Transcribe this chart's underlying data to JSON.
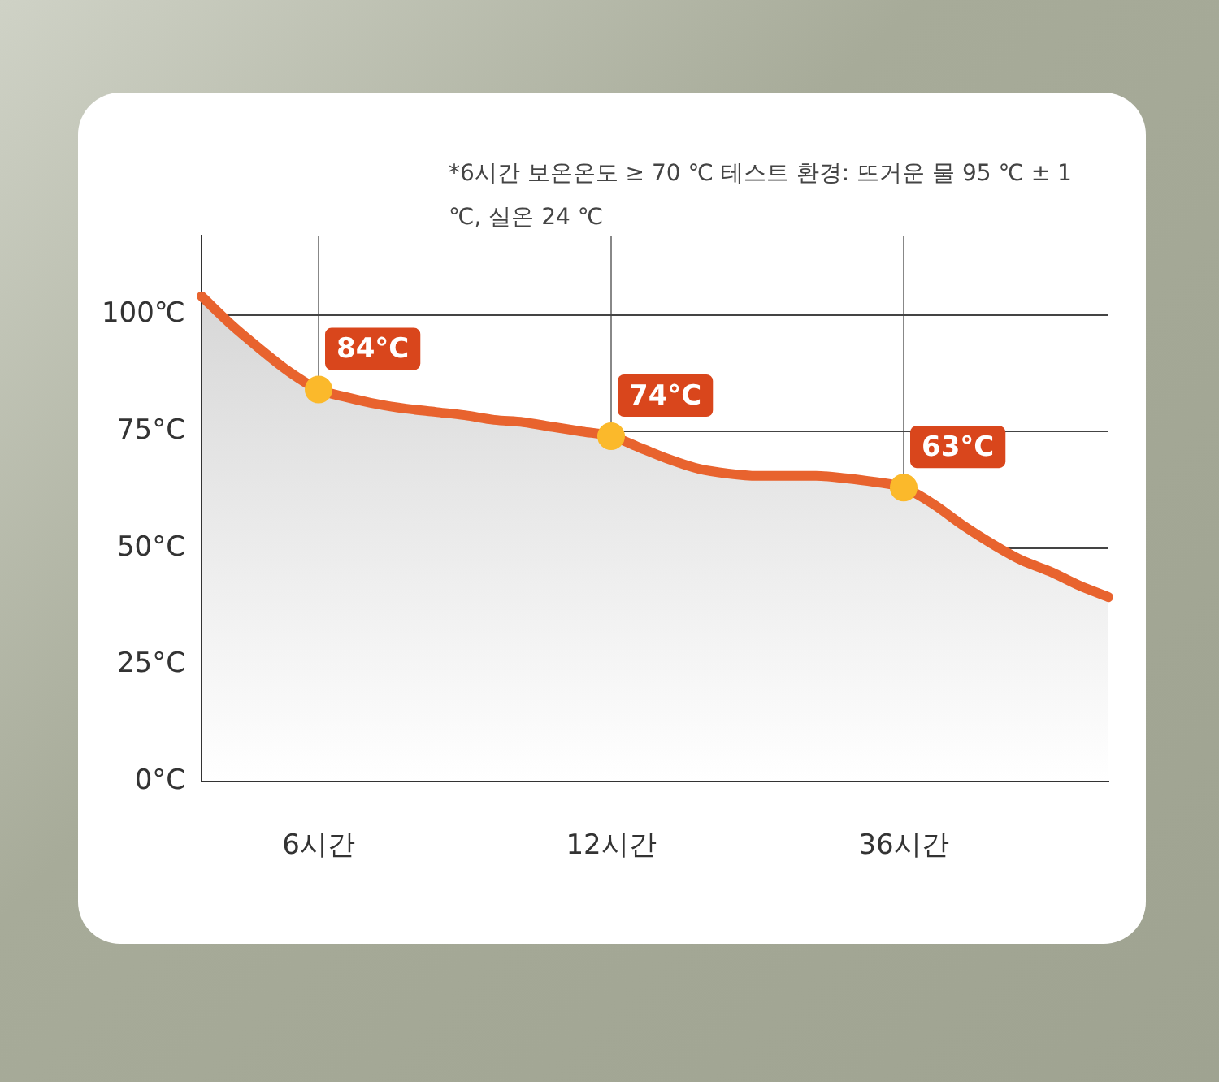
{
  "chart_data": {
    "type": "area",
    "annotations": [
      "*6시간 보온온도 ≥ 70 ℃ 테스트 환경: 뜨거운 물 95 ℃ ± 1 ℃, 실온 24 ℃"
    ],
    "categories": [
      null,
      null,
      null,
      null,
      "6시간",
      null,
      null,
      null,
      null,
      null,
      null,
      null,
      null,
      null,
      "12시간",
      null,
      null,
      null,
      null,
      null,
      null,
      null,
      null,
      null,
      "36시간",
      null,
      null,
      null,
      null,
      null,
      null,
      null
    ],
    "ylim": [
      0,
      117
    ],
    "yticks": [
      {
        "value": 0,
        "label": "0°C"
      },
      {
        "value": 25,
        "label": "25°C"
      },
      {
        "value": 50,
        "label": "50°C"
      },
      {
        "value": 75,
        "label": "75°C"
      },
      {
        "value": 100,
        "label": "100℃"
      }
    ],
    "grid": true,
    "series": [
      {
        "color": "#e8632e",
        "values": [
          104,
          98,
          92.7,
          87.8,
          84,
          82.3,
          80.9,
          79.9,
          79.2,
          78.5,
          77.5,
          77,
          76,
          75,
          74,
          71.5,
          69,
          67,
          66,
          65.5,
          65.5,
          65.5,
          65,
          64.2,
          63,
          59.5,
          55,
          51,
          47.5,
          45,
          42,
          39.5
        ]
      },
      {
        "type": "scatter",
        "color": "#fbb92b",
        "x": [
          "6시간",
          "12시간",
          "36시간"
        ],
        "values": [
          84,
          74,
          63
        ],
        "value_labels": [
          "84°C",
          "74°C",
          "63°C"
        ]
      }
    ]
  }
}
